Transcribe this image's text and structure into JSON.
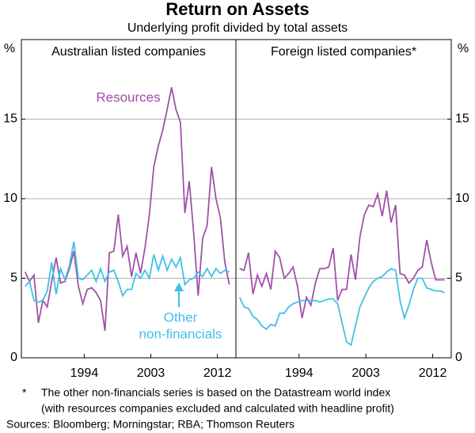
{
  "title": "Return on Assets",
  "subtitle": "Underlying profit divided by total assets",
  "y_unit": "%",
  "footnotes": [
    "*",
    "The other non-financials series is based on the Datastream world index",
    "(with resources companies excluded and calculated with headline profit)",
    "Sources: Bloomberg; Morningstar; RBA; Thomson Reuters"
  ],
  "chart_data": [
    {
      "type": "line",
      "title": "Australian listed companies",
      "annotations": [
        "Resources",
        "Other",
        "non-financials"
      ],
      "x": [
        1986,
        1986.6,
        1987.2,
        1987.8,
        1988.4,
        1989,
        1989.6,
        1990.2,
        1990.8,
        1991.4,
        1992,
        1992.6,
        1993.2,
        1993.8,
        1994.4,
        1995,
        1995.6,
        1996.2,
        1996.8,
        1997.4,
        1998,
        1998.6,
        1999.2,
        1999.8,
        2000.4,
        2001,
        2001.6,
        2002.2,
        2002.8,
        2003.4,
        2004,
        2004.6,
        2005.2,
        2005.8,
        2006.4,
        2007,
        2007.6,
        2008.2,
        2008.8,
        2009.4,
        2010,
        2010.6,
        2011.2,
        2011.8,
        2012.4,
        2013,
        2013.6
      ],
      "series": [
        {
          "name": "Resources",
          "color": "#a052a8",
          "values": [
            5.4,
            4.8,
            5.2,
            2.2,
            3.6,
            3.2,
            4.8,
            6.3,
            4.7,
            4.8,
            5.6,
            6.7,
            4.5,
            3.4,
            4.3,
            4.4,
            4.1,
            3.6,
            1.7,
            6.6,
            6.7,
            9.0,
            6.4,
            7.0,
            5.1,
            6.6,
            5.3,
            6.9,
            9.0,
            12.0,
            13.3,
            14.3,
            15.6,
            17.0,
            15.6,
            14.8,
            9.1,
            11.1,
            7.8,
            3.9,
            7.5,
            8.3,
            12.0,
            10.0,
            8.8,
            6.0,
            4.6
          ]
        },
        {
          "name": "Other non-financials",
          "color": "#3ec1e6",
          "values": [
            4.5,
            4.8,
            3.6,
            3.5,
            3.6,
            4.2,
            6.0,
            4.0,
            5.6,
            4.9,
            5.8,
            7.3,
            5.0,
            4.9,
            5.2,
            5.5,
            4.8,
            5.6,
            4.8,
            5.4,
            5.5,
            4.8,
            3.9,
            4.3,
            4.3,
            5.3,
            5.0,
            5.5,
            5.0,
            6.5,
            5.5,
            6.4,
            5.5,
            6.2,
            5.7,
            6.3,
            4.6,
            4.9,
            5.0,
            5.4,
            5.1,
            5.6,
            5.1,
            5.6,
            5.3,
            5.5,
            5.4
          ]
        }
      ],
      "xlim": [
        1985.5,
        2014.5
      ],
      "xticks": [
        1994,
        2003,
        2012
      ],
      "ylim": [
        0,
        20
      ],
      "yticks": [
        0,
        5,
        10,
        15
      ],
      "grid": true
    },
    {
      "type": "line",
      "title": "Foreign listed companies*",
      "x": [
        1986,
        1986.6,
        1987.2,
        1987.8,
        1988.4,
        1989,
        1989.6,
        1990.2,
        1990.8,
        1991.4,
        1992,
        1992.6,
        1993.2,
        1993.8,
        1994.4,
        1995,
        1995.6,
        1996.2,
        1996.8,
        1997.4,
        1998,
        1998.6,
        1999.2,
        1999.8,
        2000.4,
        2001,
        2001.6,
        2002.2,
        2002.8,
        2003.4,
        2004,
        2004.6,
        2005.2,
        2005.8,
        2006.4,
        2007,
        2007.6,
        2008.2,
        2008.8,
        2009.4,
        2010,
        2010.6,
        2011.2,
        2011.8,
        2012.4,
        2013,
        2013.6
      ],
      "series": [
        {
          "name": "Resources",
          "color": "#a052a8",
          "values": [
            5.6,
            5.5,
            6.6,
            4.0,
            5.2,
            4.5,
            5.3,
            4.3,
            6.7,
            6.3,
            5.0,
            5.3,
            5.7,
            4.5,
            2.5,
            3.8,
            3.3,
            4.7,
            5.6,
            5.6,
            5.7,
            6.9,
            3.6,
            4.3,
            4.3,
            6.5,
            4.9,
            7.6,
            9.0,
            9.6,
            9.5,
            10.3,
            8.9,
            10.5,
            8.5,
            9.6,
            5.3,
            5.2,
            4.7,
            5.0,
            5.5,
            5.7,
            7.4,
            6.0,
            4.9,
            4.9,
            4.9
          ]
        },
        {
          "name": "Other non-financials",
          "color": "#3ec1e6",
          "values": [
            3.8,
            3.2,
            3.1,
            2.6,
            2.4,
            2.0,
            1.8,
            2.1,
            2.0,
            2.8,
            2.8,
            3.2,
            3.4,
            3.5,
            3.6,
            3.6,
            3.6,
            3.6,
            3.5,
            3.6,
            3.7,
            3.7,
            3.4,
            2.2,
            1.0,
            0.8,
            2.0,
            3.2,
            3.8,
            4.4,
            4.8,
            5.0,
            5.1,
            5.4,
            5.6,
            5.5,
            3.6,
            2.5,
            3.3,
            4.3,
            5.0,
            5.0,
            4.4,
            4.3,
            4.2,
            4.2,
            4.1
          ]
        }
      ],
      "xlim": [
        1985.5,
        2014.5
      ],
      "xticks": [
        1994,
        2003,
        2012
      ],
      "ylim": [
        0,
        20
      ],
      "yticks": [
        0,
        5,
        10,
        15
      ],
      "grid": true
    }
  ]
}
